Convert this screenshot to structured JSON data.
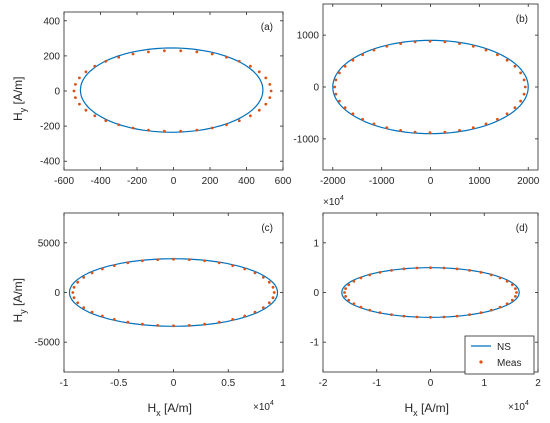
{
  "colors": {
    "ns": "#0072BD",
    "meas": "#D95319",
    "axis": "#262626"
  },
  "chart_data": [
    {
      "type": "line",
      "panel_label": "(a)",
      "xlabel_main": "",
      "xlabel_sub": "",
      "xlabel_tail": "",
      "ylabel_main": "H",
      "ylabel_sub": "y",
      "ylabel_tail": "[A/m]",
      "xlim": [
        -600,
        600
      ],
      "ylim": [
        -450,
        450
      ],
      "xticks": [
        -600,
        -400,
        -200,
        0,
        200,
        400,
        600
      ],
      "xtick_labels": [
        "-600",
        "-400",
        "-200",
        "0",
        "200",
        "400",
        "600"
      ],
      "yticks": [
        -400,
        -200,
        0,
        200,
        400
      ],
      "ytick_labels": [
        "-400",
        "-200",
        "0",
        "200",
        "400"
      ],
      "x_exponent": "",
      "series": [
        {
          "name": "NS",
          "kind": "line",
          "cx": -10,
          "cy": 5,
          "rx": 500,
          "ry": 240
        },
        {
          "name": "Meas",
          "kind": "markers",
          "cx": -5,
          "cy": 0,
          "rx": 540,
          "ry": 230,
          "n": 38
        }
      ]
    },
    {
      "type": "line",
      "panel_label": "(b)",
      "xlabel_main": "",
      "xlabel_sub": "",
      "xlabel_tail": "",
      "ylabel_main": "",
      "ylabel_sub": "",
      "ylabel_tail": "",
      "xlim": [
        -2200,
        2200
      ],
      "ylim": [
        -1600,
        1600
      ],
      "xticks": [
        -2000,
        -1000,
        0,
        1000,
        2000
      ],
      "xtick_labels": [
        "-2000",
        "-1000",
        "0",
        "1000",
        "2000"
      ],
      "yticks": [
        -1000,
        0,
        1000
      ],
      "ytick_labels": [
        "-1000",
        "0",
        "1000"
      ],
      "x_exponent": "",
      "series": [
        {
          "name": "NS",
          "kind": "line",
          "cx": 0,
          "cy": 0,
          "rx": 2000,
          "ry": 900
        },
        {
          "name": "Meas",
          "kind": "markers",
          "cx": -10,
          "cy": 0,
          "rx": 1950,
          "ry": 880,
          "n": 40
        }
      ]
    },
    {
      "type": "line",
      "panel_label": "(c)",
      "xlabel_main": "H",
      "xlabel_sub": "x",
      "xlabel_tail": "[A/m]",
      "ylabel_main": "H",
      "ylabel_sub": "y",
      "ylabel_tail": "[A/m]",
      "xlim": [
        -1,
        1
      ],
      "ylim": [
        -8000,
        8000
      ],
      "xticks": [
        -1,
        -0.5,
        0,
        0.5,
        1
      ],
      "xtick_labels": [
        "-1",
        "-0.5",
        "0",
        "0.5",
        "1"
      ],
      "yticks": [
        -5000,
        0,
        5000
      ],
      "ytick_labels": [
        "-5000",
        "0",
        "5000"
      ],
      "x_exponent": "×10",
      "x_exponent_power": "4",
      "series": [
        {
          "name": "NS",
          "kind": "line",
          "cx": 0,
          "cy": 0,
          "rx": 0.95,
          "ry": 3400
        },
        {
          "name": "Meas",
          "kind": "markers",
          "cx": 0,
          "cy": 0,
          "rx": 0.92,
          "ry": 3350,
          "n": 40
        }
      ]
    },
    {
      "type": "line",
      "panel_label": "(d)",
      "xlabel_main": "H",
      "xlabel_sub": "x",
      "xlabel_tail": "[A/m]",
      "ylabel_main": "",
      "ylabel_sub": "",
      "ylabel_tail": "",
      "xlim": [
        -2,
        2
      ],
      "ylim": [
        -1.6,
        1.6
      ],
      "xticks": [
        -2,
        -1,
        0,
        1,
        2
      ],
      "xtick_labels": [
        "-2",
        "-1",
        "0",
        "1",
        "2"
      ],
      "yticks": [
        -1,
        0,
        1
      ],
      "ytick_labels": [
        "-1",
        "0",
        "1"
      ],
      "x_exponent": "×10",
      "x_exponent_power": "4",
      "series": [
        {
          "name": "NS",
          "kind": "line",
          "cx": 0,
          "cy": 0,
          "rx": 1.65,
          "ry": 0.5
        },
        {
          "name": "Meas",
          "kind": "markers",
          "cx": 0,
          "cy": 0,
          "rx": 1.6,
          "ry": 0.5,
          "n": 40
        }
      ]
    }
  ],
  "between_exponent": {
    "prefix": "×10",
    "power": "4"
  },
  "legend": {
    "entries": [
      "NS",
      "Meas"
    ]
  }
}
